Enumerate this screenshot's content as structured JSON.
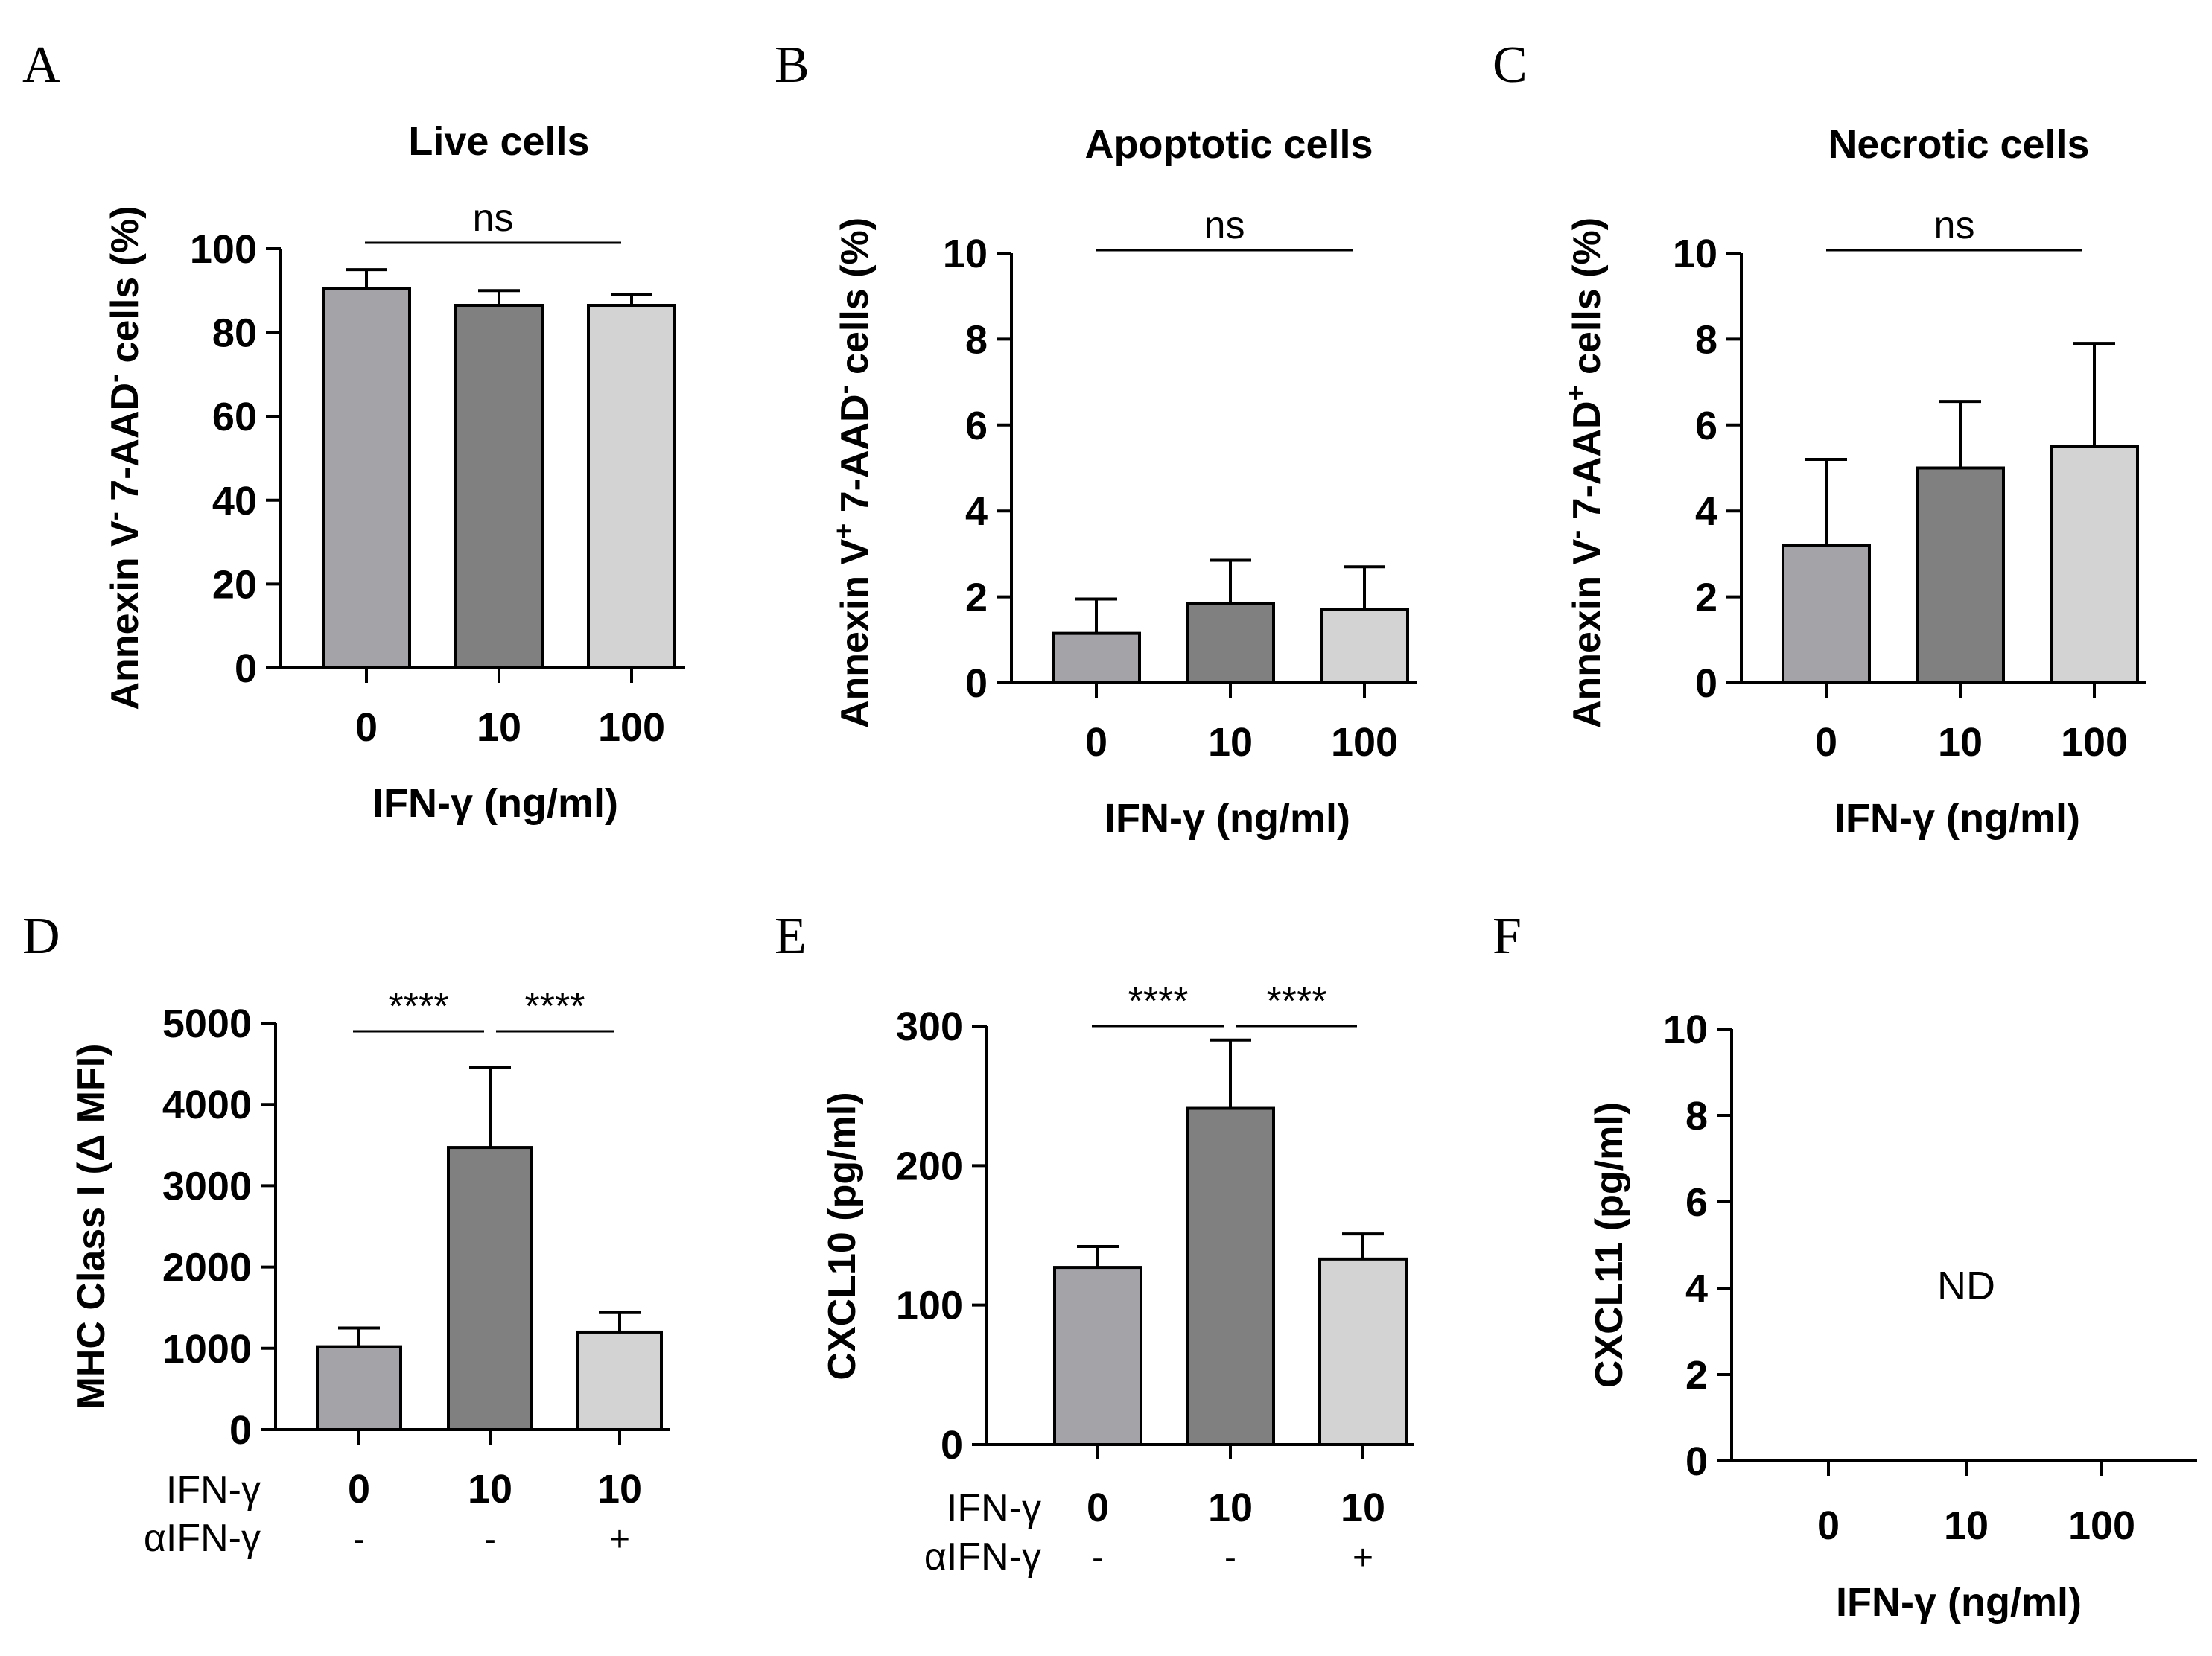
{
  "chart_data": [
    {
      "id": "A",
      "type": "bar",
      "panel_label": "A",
      "title": "Live cells",
      "ylabel_parts": [
        "Annexin V",
        "-",
        " 7-AAD",
        "-",
        " cells  (%)"
      ],
      "xlabel": "IFN-γ  (ng/ml)",
      "categories": [
        "0",
        "10",
        "100"
      ],
      "values": [
        90.5,
        86.5,
        86.5
      ],
      "errors": [
        4.5,
        3.5,
        2.5
      ],
      "colors": [
        "#a3a3a8",
        "#808080",
        "#d3d3d3"
      ],
      "ylim": [
        0,
        100
      ],
      "yticks": [
        0,
        20,
        40,
        60,
        80,
        100
      ],
      "ytick_labels": [
        "0",
        "20",
        "40",
        "60",
        "80",
        "100"
      ],
      "sig": [
        {
          "from": 0,
          "to": 2,
          "label": "ns"
        }
      ]
    },
    {
      "id": "B",
      "type": "bar",
      "panel_label": "B",
      "title": "Apoptotic cells",
      "ylabel_parts": [
        "Annexin V",
        "+",
        " 7-AAD",
        "-",
        " cells  (%)"
      ],
      "xlabel": "IFN-γ  (ng/ml)",
      "categories": [
        "0",
        "10",
        "100"
      ],
      "values": [
        1.15,
        1.85,
        1.7
      ],
      "errors": [
        0.8,
        1.0,
        1.0
      ],
      "colors": [
        "#a3a3a8",
        "#808080",
        "#d3d3d3"
      ],
      "ylim": [
        0,
        10
      ],
      "yticks": [
        0,
        2,
        4,
        6,
        8,
        10
      ],
      "ytick_labels": [
        "0",
        "2",
        "4",
        "6",
        "8",
        "10"
      ],
      "sig": [
        {
          "from": 0,
          "to": 2,
          "label": "ns"
        }
      ]
    },
    {
      "id": "C",
      "type": "bar",
      "panel_label": "C",
      "title": "Necrotic cells",
      "ylabel_parts": [
        "Annexin V",
        "-",
        " 7-AAD",
        "+",
        " cells  (%)"
      ],
      "xlabel": "IFN-γ  (ng/ml)",
      "categories": [
        "0",
        "10",
        "100"
      ],
      "values": [
        3.2,
        5.0,
        5.5
      ],
      "errors": [
        2.0,
        1.55,
        2.4
      ],
      "colors": [
        "#a3a3a8",
        "#808080",
        "#d3d3d3"
      ],
      "ylim": [
        0,
        10
      ],
      "yticks": [
        0,
        2,
        4,
        6,
        8,
        10
      ],
      "ytick_labels": [
        "0",
        "2",
        "4",
        "6",
        "8",
        "10"
      ],
      "sig": [
        {
          "from": 0,
          "to": 2,
          "label": "ns"
        }
      ]
    },
    {
      "id": "D",
      "type": "bar",
      "panel_label": "D",
      "title": "",
      "ylabel": "MHC Class I (Δ MFI)",
      "categories": [
        "0",
        "10",
        "10"
      ],
      "values": [
        1020,
        3470,
        1200
      ],
      "errors": [
        230,
        990,
        240
      ],
      "colors": [
        "#a3a3a8",
        "#808080",
        "#d3d3d3"
      ],
      "ylim": [
        0,
        5000
      ],
      "yticks": [
        0,
        1000,
        2000,
        3000,
        4000,
        5000
      ],
      "ytick_labels": [
        "0",
        "1000",
        "2000",
        "3000",
        "4000",
        "5000"
      ],
      "row_labels": [
        "IFN-γ",
        "αIFN-γ"
      ],
      "treatment": [
        "-",
        "-",
        "+"
      ],
      "sig": [
        {
          "from": 0,
          "to": 1,
          "label": "****"
        },
        {
          "from": 1,
          "to": 2,
          "label": "****"
        }
      ]
    },
    {
      "id": "E",
      "type": "bar",
      "panel_label": "E",
      "title": "",
      "ylabel": "CXCL10 (pg/ml)",
      "categories": [
        "0",
        "10",
        "10"
      ],
      "values": [
        127,
        241,
        133
      ],
      "errors": [
        15,
        49,
        18
      ],
      "colors": [
        "#a3a3a8",
        "#808080",
        "#d3d3d3"
      ],
      "ylim": [
        0,
        300
      ],
      "yticks": [
        0,
        100,
        200,
        300
      ],
      "ytick_labels": [
        "0",
        "100",
        "200",
        "300"
      ],
      "row_labels": [
        "IFN-γ",
        "αIFN-γ"
      ],
      "treatment": [
        "-",
        "-",
        "+"
      ],
      "sig": [
        {
          "from": 0,
          "to": 1,
          "label": "****"
        },
        {
          "from": 1,
          "to": 2,
          "label": "****"
        }
      ]
    },
    {
      "id": "F",
      "type": "bar",
      "panel_label": "F",
      "title": "",
      "ylabel": "CXCL11 (pg/ml)",
      "xlabel": "IFN-γ  (ng/ml)",
      "categories": [
        "0",
        "10",
        "100"
      ],
      "values": [
        0,
        0,
        0
      ],
      "errors": [
        0,
        0,
        0
      ],
      "colors": [
        "#a3a3a8",
        "#808080",
        "#d3d3d3"
      ],
      "ylim": [
        0,
        10
      ],
      "yticks": [
        0,
        2,
        4,
        6,
        8,
        10
      ],
      "ytick_labels": [
        "0",
        "2",
        "4",
        "6",
        "8",
        "10"
      ],
      "annotation": "ND",
      "sig": []
    }
  ]
}
